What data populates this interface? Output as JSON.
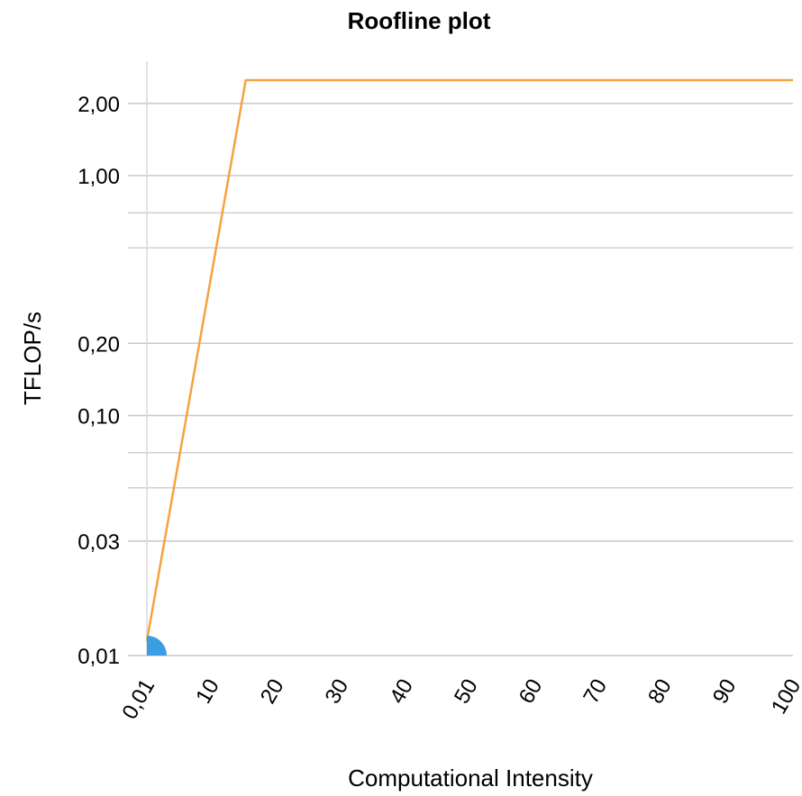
{
  "chart_data": {
    "type": "line",
    "title": "Roofline plot",
    "xlabel": "Computational Intensity",
    "ylabel": "TFLOP/s",
    "x_ticks": [
      "0,01",
      "10",
      "20",
      "30",
      "40",
      "50",
      "60",
      "70",
      "80",
      "90",
      "100"
    ],
    "y_scale": "log",
    "y_ticks": [
      {
        "value": 0.01,
        "label": "0,01"
      },
      {
        "value": 0.03,
        "label": "0,03"
      },
      {
        "value": 0.1,
        "label": "0,10"
      },
      {
        "value": 0.2,
        "label": "0,20"
      },
      {
        "value": 1.0,
        "label": "1,00"
      },
      {
        "value": 2.0,
        "label": "2,00"
      }
    ],
    "y_minor_gridlines": [
      0.05,
      0.07,
      0.5,
      0.7
    ],
    "xlim": [
      0.01,
      100
    ],
    "ylim": [
      0.01,
      2.5
    ],
    "grid": true,
    "series": [
      {
        "color": "#f5a340",
        "x": [
          0.01,
          15.3,
          100
        ],
        "y": [
          0.0115,
          2.5,
          2.5
        ]
      }
    ],
    "markers": [
      {
        "x": 0.01,
        "y": 0.01,
        "color": "#3a9ee3",
        "shape": "quarter-circle"
      }
    ]
  }
}
